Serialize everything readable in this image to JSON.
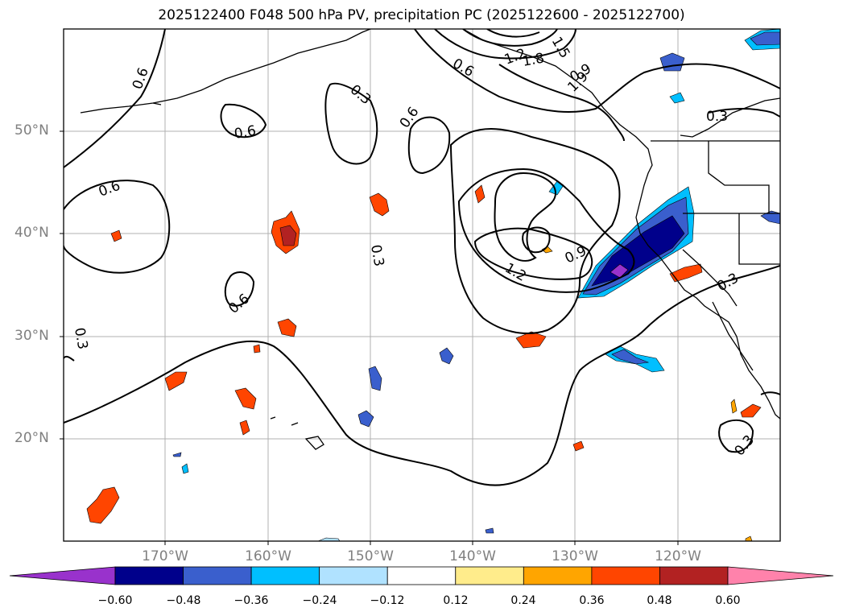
{
  "title": "2025122400 F048 500 hPa PV, precipitation PC (2025122600 - 2025122700)",
  "lat_labels": [
    "50°N",
    "40°N",
    "30°N",
    "20°N"
  ],
  "lon_labels": [
    "170°W",
    "160°W",
    "150°W",
    "140°W",
    "130°W",
    "120°W"
  ],
  "contour_labels": [
    "0.6",
    "0.3",
    "0.6",
    "0.6",
    "0.6",
    "0.3",
    "0.3",
    "0.6",
    "0.6",
    "1.2",
    "0.9",
    "1.2",
    "0.9",
    "0.3",
    "0.3",
    "0.3",
    "1.5",
    "1.8",
    "1.9"
  ],
  "colorbar": {
    "ticks": [
      "−0.60",
      "−0.48",
      "−0.36",
      "−0.24",
      "−0.12",
      "0.12",
      "0.24",
      "0.36",
      "0.48",
      "0.60"
    ],
    "colors": [
      "#9932cc",
      "#00008b",
      "#3a5fcd",
      "#00bfff",
      "#b0e2ff",
      "#ffffff",
      "#ffec8b",
      "#ffa500",
      "#ff4500",
      "#b22222",
      "#ff82ab"
    ]
  }
}
